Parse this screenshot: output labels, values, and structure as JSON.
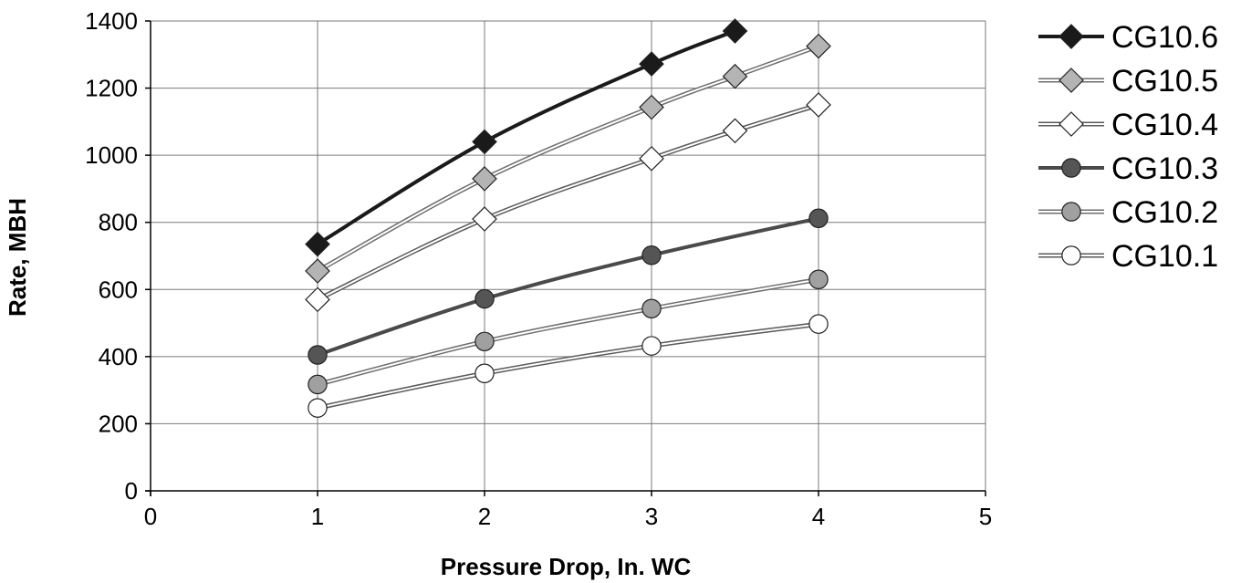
{
  "chart_data": {
    "type": "line",
    "title": "",
    "xlabel": "Pressure Drop, In. WC",
    "ylabel": "Rate, MBH",
    "xlim": [
      0,
      5
    ],
    "ylim": [
      0,
      1400
    ],
    "x_ticks": [
      "0",
      "1",
      "2",
      "3",
      "4",
      "5"
    ],
    "y_ticks": [
      "0",
      "200",
      "400",
      "600",
      "800",
      "1000",
      "1200",
      "1400"
    ],
    "grid": true,
    "legend_position": "right",
    "series": [
      {
        "name": "CG10.6",
        "marker": "diamond",
        "line_color": "#1a1a1a",
        "marker_fill": "#1a1a1a",
        "x": [
          1,
          2,
          3,
          3.5
        ],
        "y": [
          735,
          1040,
          1272,
          1370
        ]
      },
      {
        "name": "CG10.5",
        "marker": "diamond",
        "line_color": "#6e6e6e",
        "marker_fill": "#b4b4b4",
        "x": [
          1,
          2,
          3,
          3.5,
          4
        ],
        "y": [
          655,
          930,
          1143,
          1235,
          1325
        ]
      },
      {
        "name": "CG10.4",
        "marker": "diamond",
        "line_color": "#5a5a5a",
        "marker_fill": "#ffffff",
        "x": [
          1,
          2,
          3,
          3.5,
          4
        ],
        "y": [
          570,
          810,
          990,
          1073,
          1150
        ]
      },
      {
        "name": "CG10.3",
        "marker": "circle",
        "line_color": "#4a4a4a",
        "marker_fill": "#555555",
        "x": [
          1,
          2,
          3,
          4
        ],
        "y": [
          405,
          572,
          702,
          812
        ]
      },
      {
        "name": "CG10.2",
        "marker": "circle",
        "line_color": "#6e6e6e",
        "marker_fill": "#a0a0a0",
        "x": [
          1,
          2,
          3,
          4
        ],
        "y": [
          317,
          445,
          543,
          630
        ]
      },
      {
        "name": "CG10.1",
        "marker": "circle",
        "line_color": "#5a5a5a",
        "marker_fill": "#ffffff",
        "x": [
          1,
          2,
          3,
          4
        ],
        "y": [
          247,
          350,
          432,
          497
        ]
      }
    ]
  }
}
